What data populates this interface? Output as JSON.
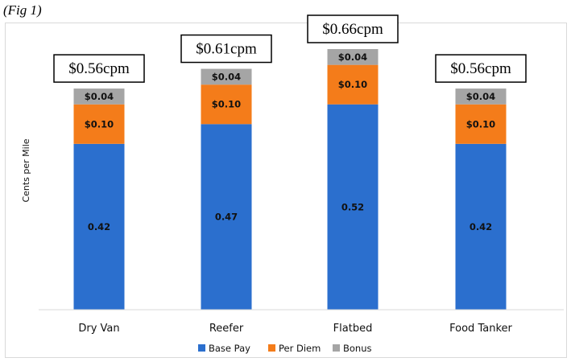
{
  "figure_label": "(Fig 1)",
  "chart_data": {
    "type": "bar",
    "stacked": true,
    "categories": [
      "Dry Van",
      "Reefer",
      "Flatbed",
      "Food Tanker"
    ],
    "series": [
      {
        "name": "Base Pay",
        "values": [
          0.42,
          0.47,
          0.52,
          0.42
        ],
        "labels": [
          "0.42",
          "0.47",
          "0.52",
          "0.42"
        ],
        "color": "#2b6fce"
      },
      {
        "name": "Per Diem",
        "values": [
          0.1,
          0.1,
          0.1,
          0.1
        ],
        "labels": [
          "$0.10",
          "$0.10",
          "$0.10",
          "$0.10"
        ],
        "color": "#f47c1a"
      },
      {
        "name": "Bonus",
        "values": [
          0.04,
          0.04,
          0.04,
          0.04
        ],
        "labels": [
          "$0.04",
          "$0.04",
          "$0.04",
          "$0.04"
        ],
        "color": "#a5a5a5"
      }
    ],
    "totals": [
      "$0.56cpm",
      "$0.61cpm",
      "$0.66cpm",
      "$0.56cpm"
    ],
    "xlabel": "",
    "ylabel": "Cents per Mile",
    "ylim": [
      0,
      0.66
    ],
    "grid": false,
    "legend_position": "bottom"
  }
}
